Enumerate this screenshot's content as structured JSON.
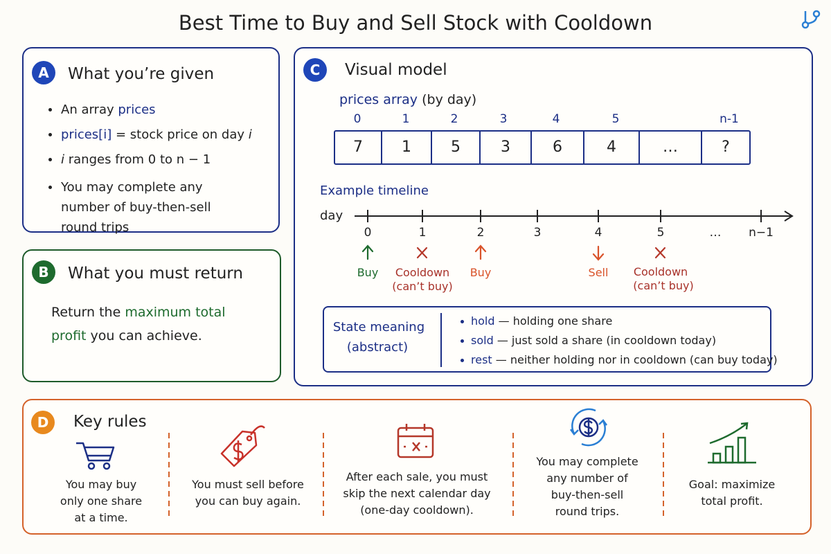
{
  "title": "Best Time to Buy and Sell Stock with Cooldown",
  "given": {
    "badge": "A",
    "heading": "What you’re given",
    "bullets": [
      [
        "An array",
        "prices"
      ],
      [
        "prices[i]",
        "= stock price on day",
        "i"
      ],
      [
        "i",
        "ranges from 0 to n − 1"
      ],
      [
        "You may complete any number of buy-then-sell round trips"
      ]
    ]
  },
  "return": {
    "badge": "B",
    "heading": "What you must return",
    "text": [
      "Return the",
      "maximum total profit",
      "you can achieve."
    ]
  },
  "model": {
    "badge": "C",
    "heading": "Visual model",
    "array_label": "prices array",
    "array_note": "(by day)",
    "indices": [
      "0",
      "1",
      "2",
      "3",
      "4",
      "5",
      "n-1"
    ],
    "cells": [
      "7",
      "1",
      "5",
      "3",
      "6",
      "4",
      "…",
      "?"
    ],
    "timeline_label": "Example timeline",
    "axis_label": "day",
    "days": [
      "0",
      "1",
      "2",
      "3",
      "4",
      "5",
      "…",
      "n−1"
    ],
    "events": [
      {
        "label": "Buy"
      },
      {
        "label": "Cooldown",
        "note": "(can’t buy)"
      },
      {
        "label": "Buy"
      },
      {
        "label": "Sell"
      },
      {
        "label": "Cooldown",
        "note": "(can’t buy)"
      }
    ],
    "state": {
      "heading": "State meaning",
      "note": "(abstract)",
      "items": [
        {
          "name": "hold",
          "desc": "— holding one share"
        },
        {
          "name": "sold",
          "desc": "— just sold a share (in cooldown today)"
        },
        {
          "name": "rest",
          "desc": "— neither holding nor in cooldown (can buy today)"
        }
      ]
    }
  },
  "rules": {
    "badge": "D",
    "heading": "Key rules",
    "items": [
      "You may buy only one share at a time.",
      "You must sell before you can buy again.",
      "After each sale, you must skip the next calendar day (one-day cooldown).",
      "You may complete any number of buy-then-sell round trips.",
      "Goal: maximize total profit."
    ]
  }
}
